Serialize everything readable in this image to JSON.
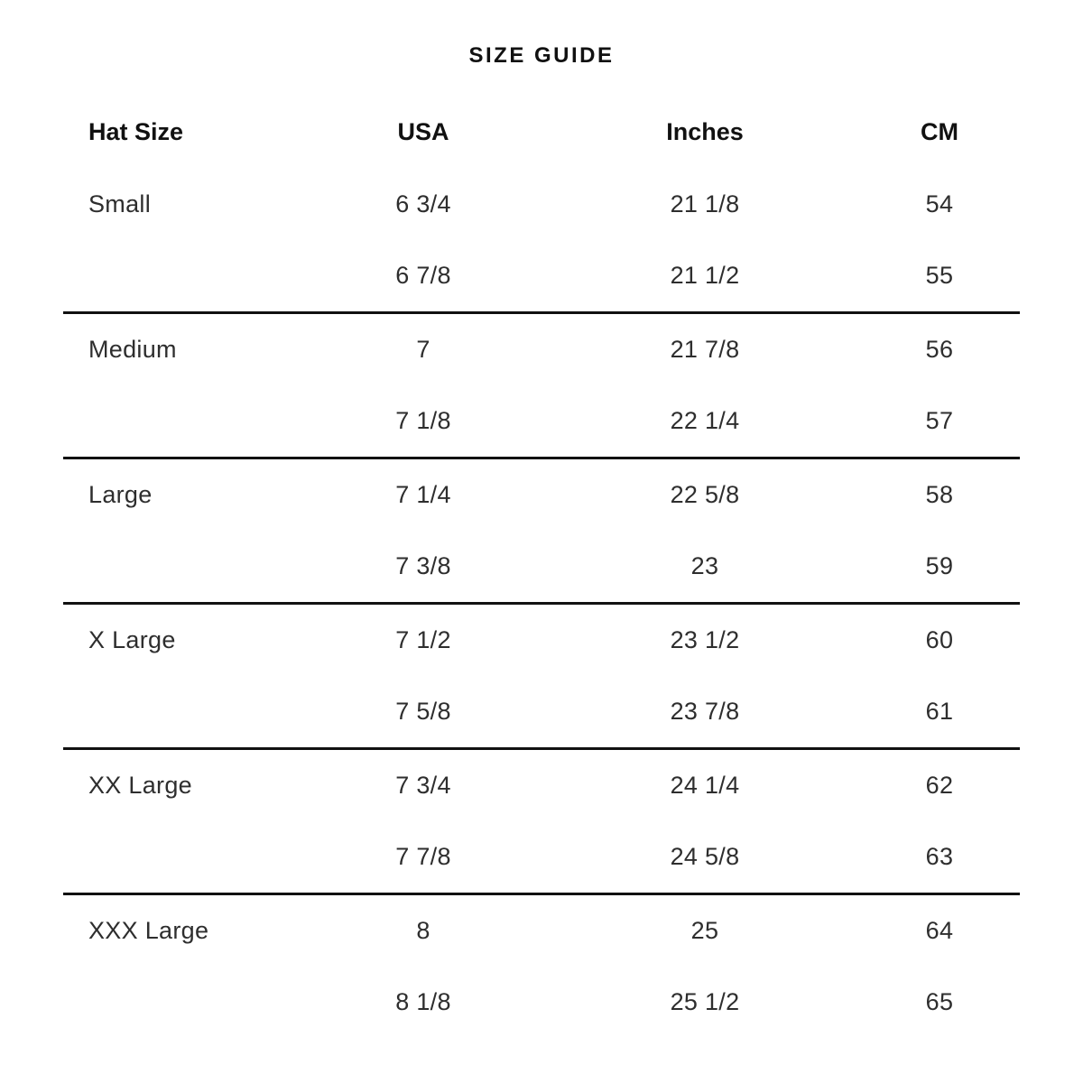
{
  "title": "SIZE GUIDE",
  "table": {
    "columns": [
      "Hat Size",
      "USA",
      "Inches",
      "CM"
    ],
    "groups": [
      {
        "label": "Small",
        "rows": [
          [
            "6 3/4",
            "21 1/8",
            "54"
          ],
          [
            "6 7/8",
            "21 1/2",
            "55"
          ]
        ]
      },
      {
        "label": "Medium",
        "rows": [
          [
            "7",
            "21 7/8",
            "56"
          ],
          [
            "7 1/8",
            "22 1/4",
            "57"
          ]
        ]
      },
      {
        "label": "Large",
        "rows": [
          [
            "7 1/4",
            "22 5/8",
            "58"
          ],
          [
            "7 3/8",
            "23",
            "59"
          ]
        ]
      },
      {
        "label": "X Large",
        "rows": [
          [
            "7 1/2",
            "23 1/2",
            "60"
          ],
          [
            "7 5/8",
            "23 7/8",
            "61"
          ]
        ]
      },
      {
        "label": "XX Large",
        "rows": [
          [
            "7 3/4",
            "24 1/4",
            "62"
          ],
          [
            "7 7/8",
            "24 5/8",
            "63"
          ]
        ]
      },
      {
        "label": "XXX Large",
        "rows": [
          [
            "8",
            "25",
            "64"
          ],
          [
            "8 1/8",
            "25 1/2",
            "65"
          ]
        ]
      }
    ]
  }
}
